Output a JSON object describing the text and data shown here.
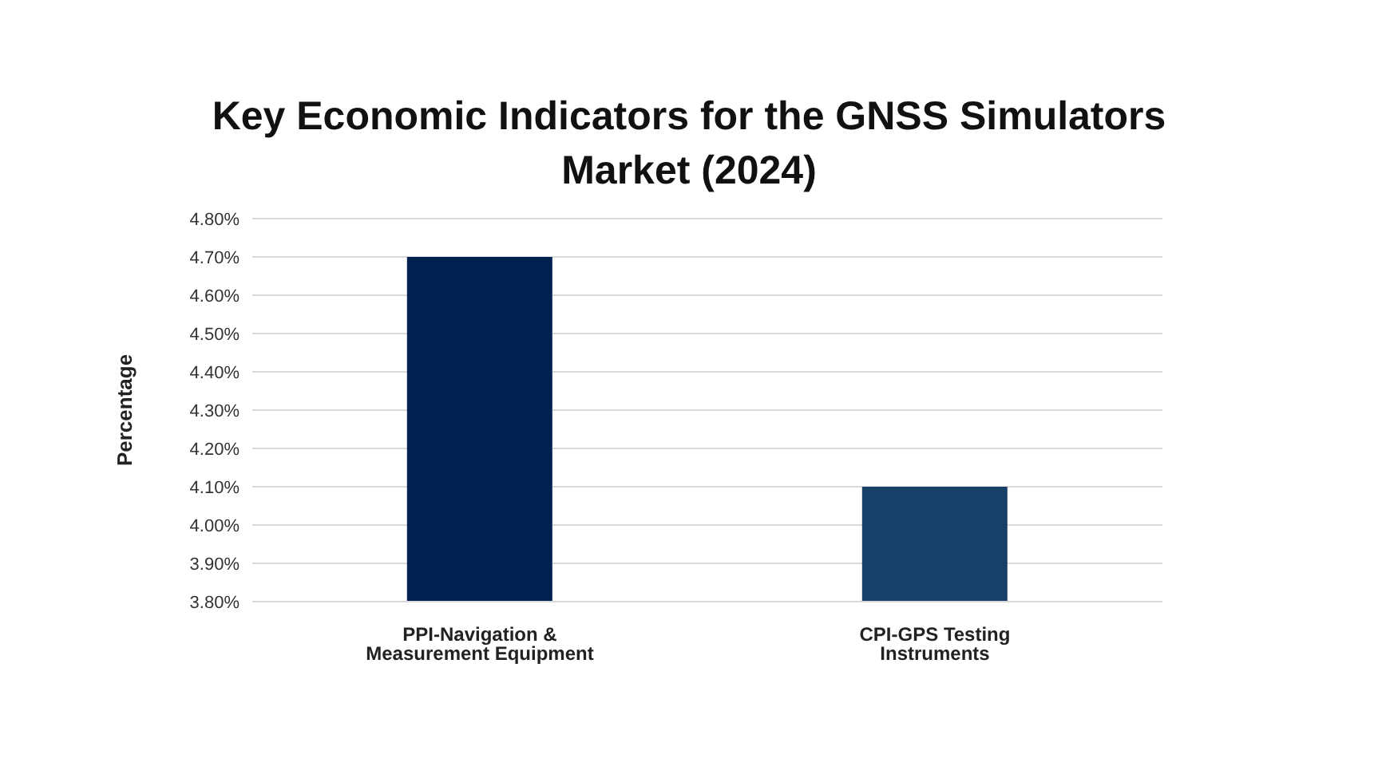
{
  "chart_data": {
    "type": "bar",
    "title": "Key Economic Indicators for the GNSS Simulators Market (2024)",
    "ylabel": "Percentage",
    "categories": [
      "PPI-Navigation & Measurement Equipment",
      "CPI-GPS Testing Instruments"
    ],
    "values": [
      4.7,
      4.1
    ],
    "colors": [
      "#002050",
      "#173f68"
    ],
    "ylim": [
      3.8,
      4.8
    ],
    "yticks": [
      {
        "value": 3.8,
        "label": "3.80%"
      },
      {
        "value": 3.9,
        "label": "3.90%"
      },
      {
        "value": 4.0,
        "label": "4.00%"
      },
      {
        "value": 4.1,
        "label": "4.10%"
      },
      {
        "value": 4.2,
        "label": "4.20%"
      },
      {
        "value": 4.3,
        "label": "4.30%"
      },
      {
        "value": 4.4,
        "label": "4.40%"
      },
      {
        "value": 4.5,
        "label": "4.50%"
      },
      {
        "value": 4.6,
        "label": "4.60%"
      },
      {
        "value": 4.7,
        "label": "4.70%"
      },
      {
        "value": 4.8,
        "label": "4.80%"
      }
    ],
    "grid": "y",
    "legend": false
  }
}
